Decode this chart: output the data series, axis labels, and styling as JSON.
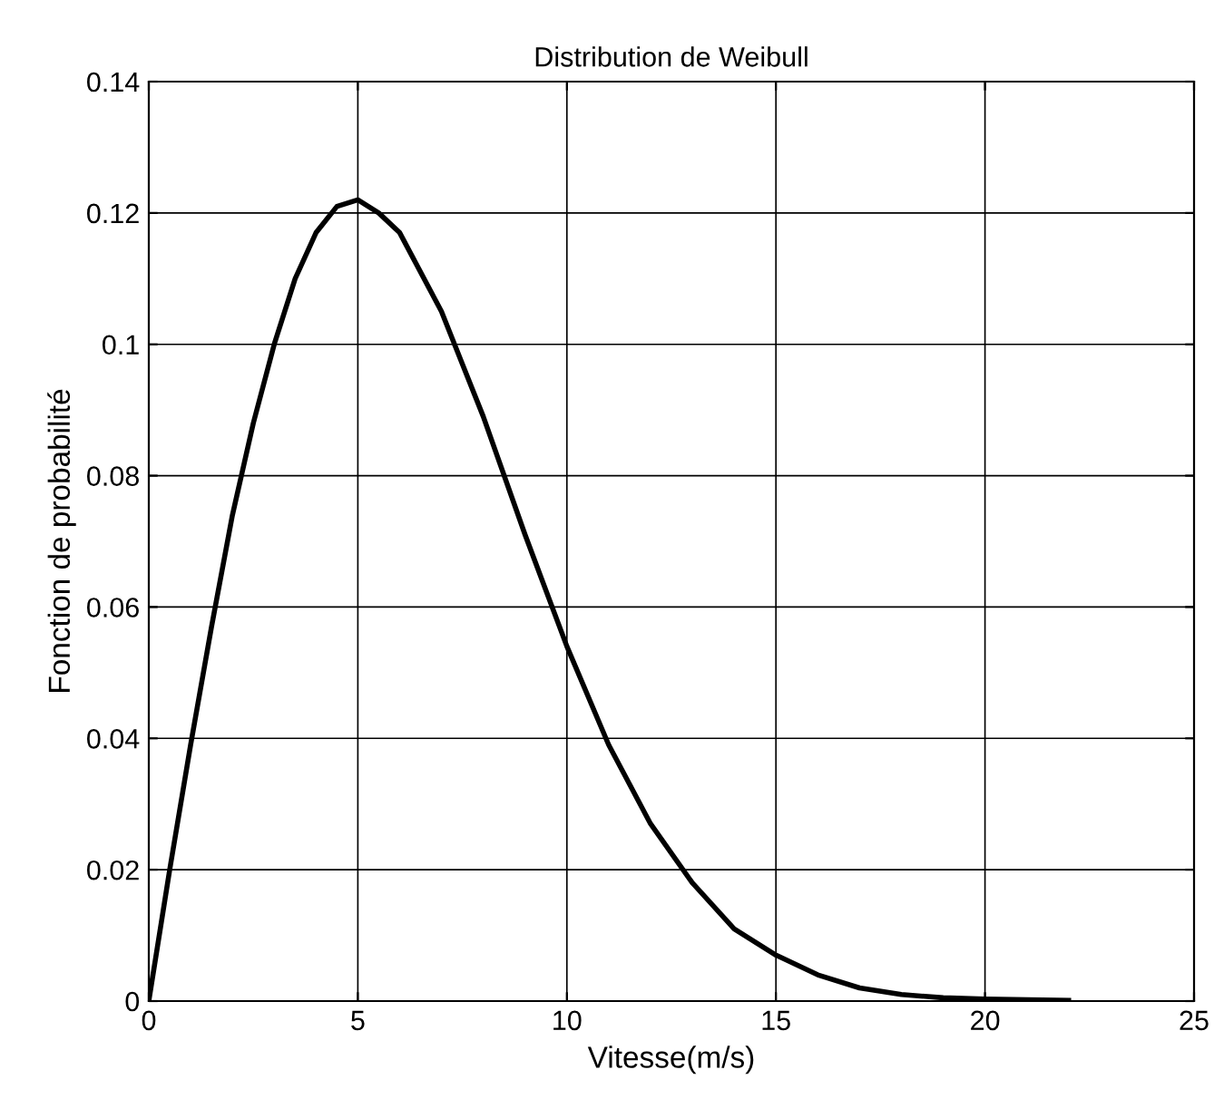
{
  "chart_data": {
    "type": "line",
    "title": "Distribution de Weibull",
    "xlabel": "Vitesse(m/s)",
    "ylabel": "Fonction de probabilité",
    "x": [
      0,
      0.5,
      1,
      1.5,
      2,
      2.5,
      3,
      3.5,
      4,
      4.5,
      5,
      5.5,
      6,
      7,
      8,
      9,
      10,
      11,
      12,
      13,
      14,
      15,
      16,
      17,
      18,
      19,
      20,
      22
    ],
    "series": [
      {
        "color": "#000000",
        "values": [
          0,
          0.02,
          0.039,
          0.057,
          0.074,
          0.088,
          0.1,
          0.11,
          0.117,
          0.121,
          0.122,
          0.12,
          0.117,
          0.105,
          0.089,
          0.071,
          0.054,
          0.039,
          0.027,
          0.018,
          0.011,
          0.007,
          0.004,
          0.002,
          0.001,
          0.0005,
          0.0003,
          0.0001
        ]
      }
    ],
    "xlim": [
      0,
      25
    ],
    "ylim": [
      0,
      0.14
    ],
    "xticks": [
      0,
      5,
      10,
      15,
      20,
      25
    ],
    "yticks": [
      0,
      0.02,
      0.04,
      0.06,
      0.08,
      0.1,
      0.12,
      0.14
    ],
    "grid": true,
    "legend": false,
    "marker": "none",
    "line_style": "solid"
  }
}
